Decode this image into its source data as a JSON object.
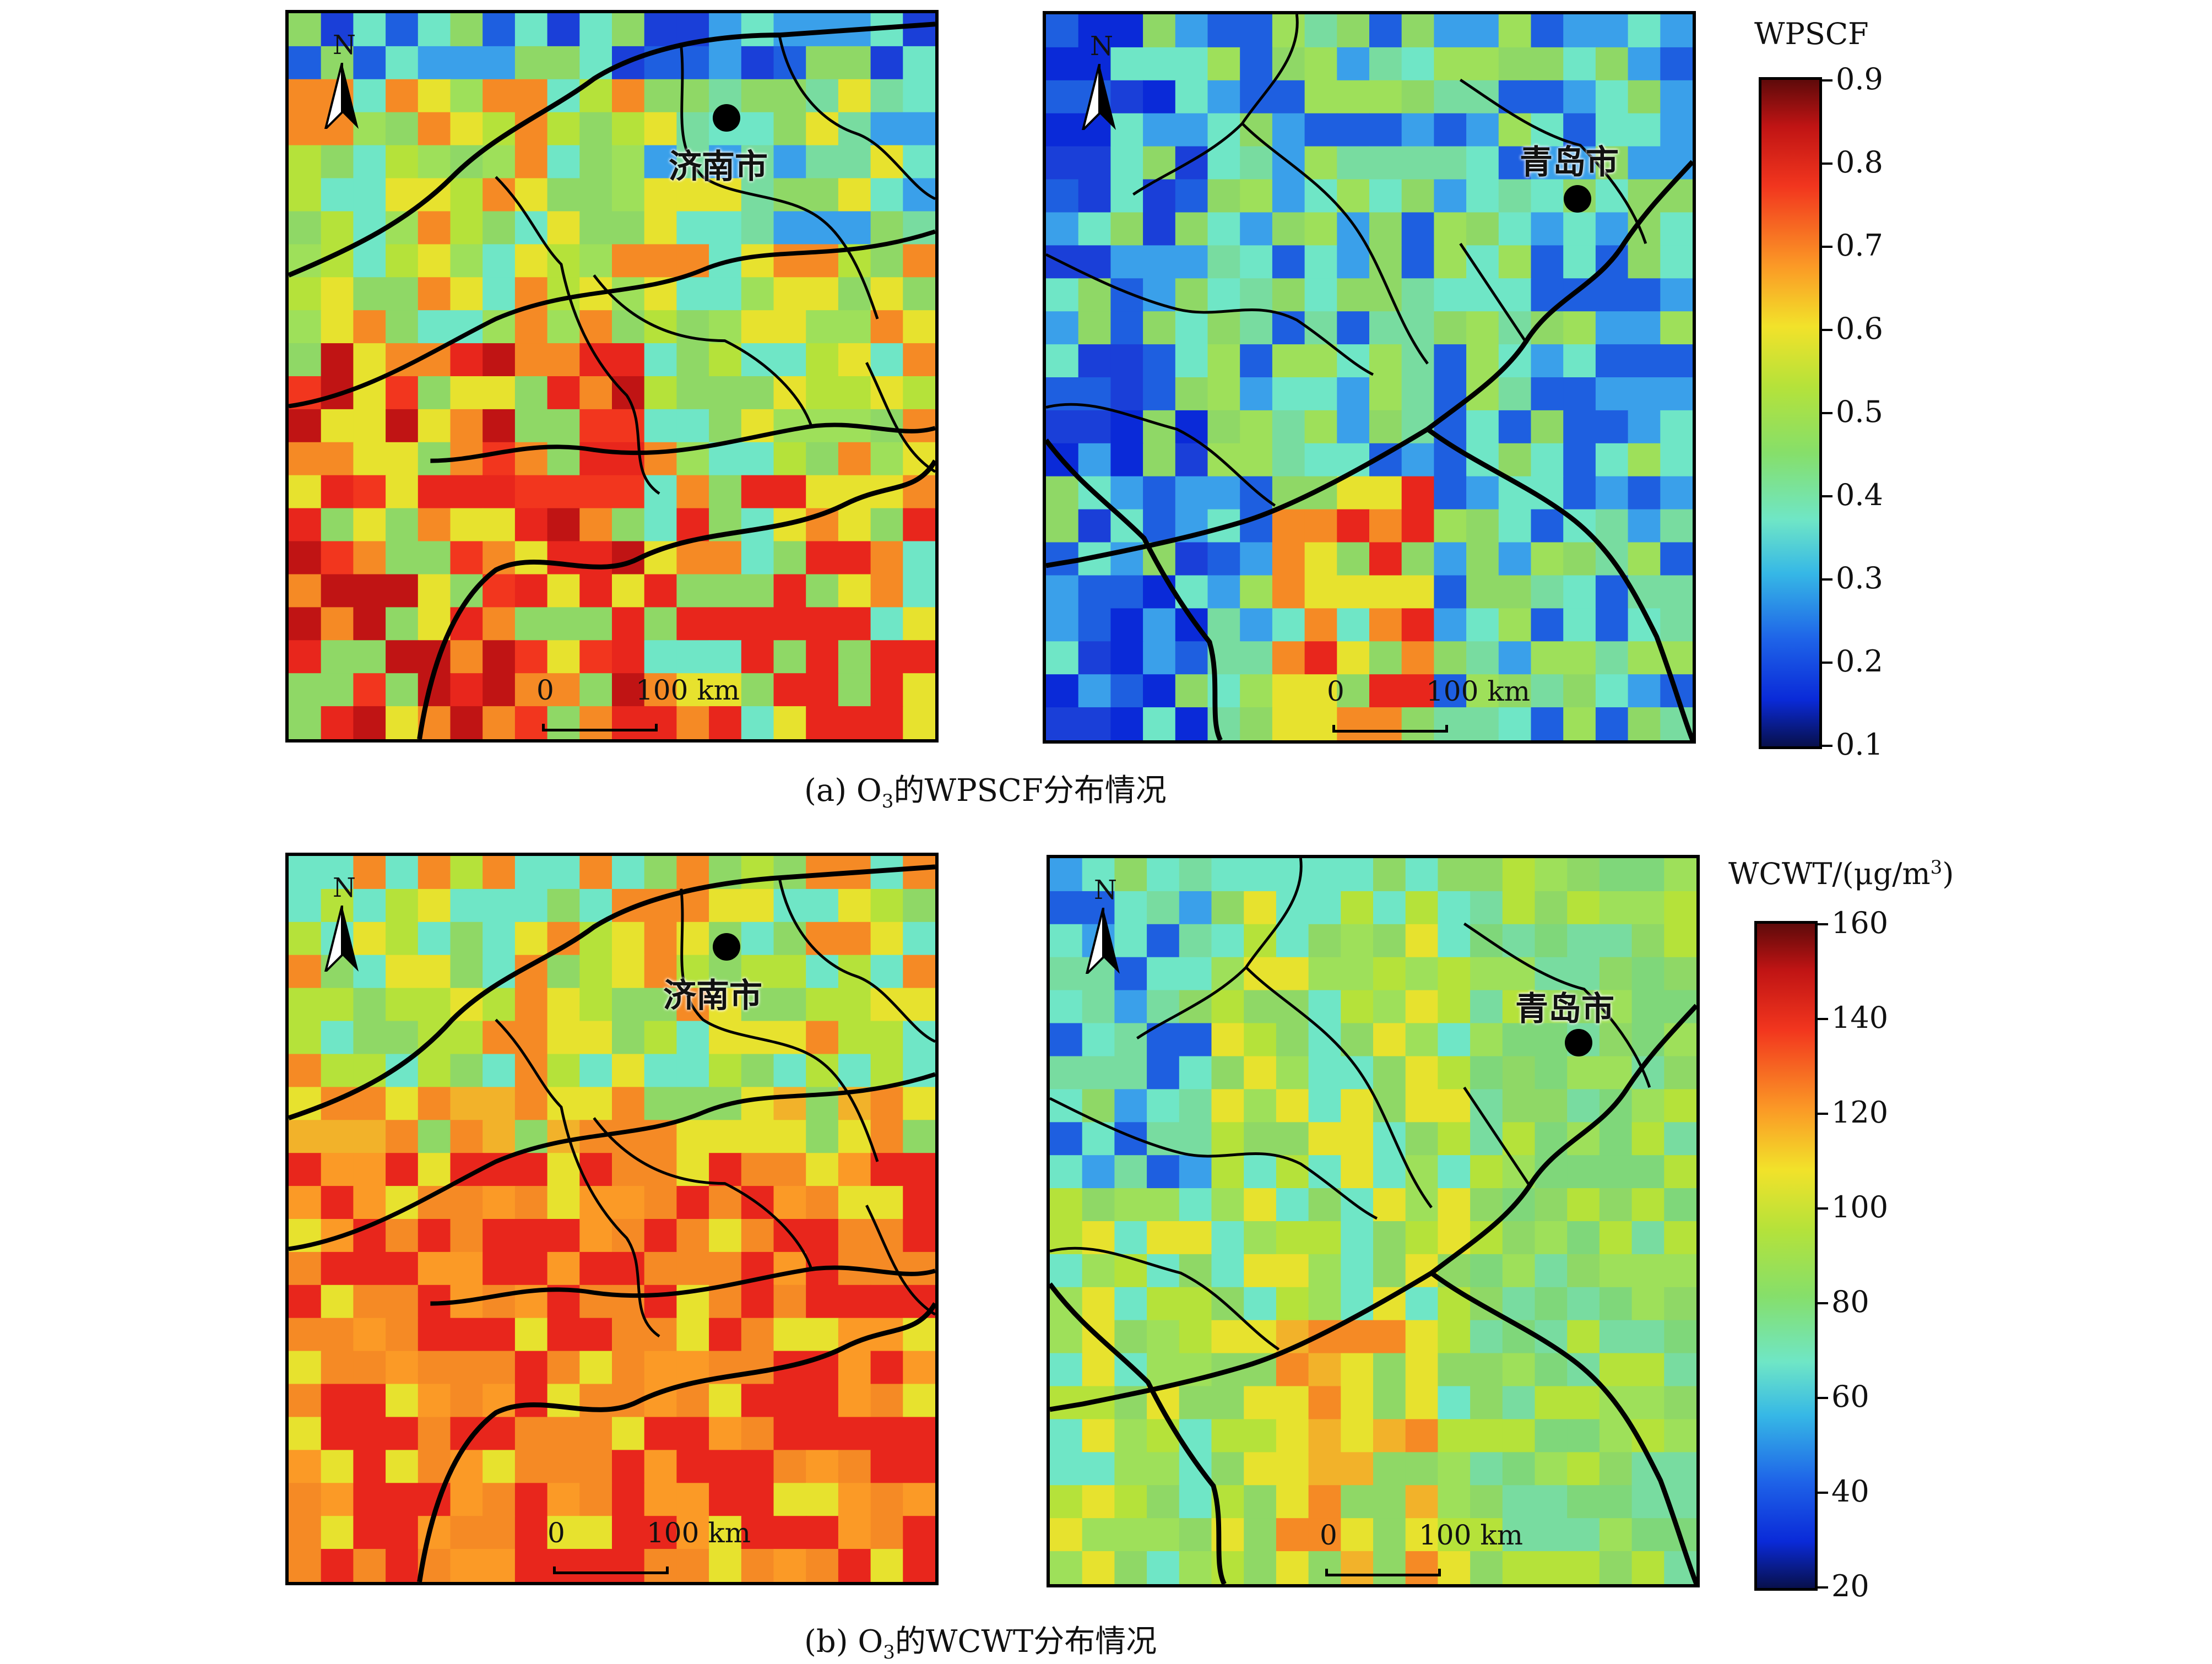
{
  "panels": {
    "a_left": {
      "city": "济南市"
    },
    "a_right": {
      "city": "青岛市"
    },
    "b_left": {
      "city": "济南市"
    },
    "b_right": {
      "city": "青岛市"
    }
  },
  "north_label": "N",
  "scale_bar": {
    "start": "0",
    "end": "100 km"
  },
  "captions": {
    "a_prefix": "(a) O",
    "a_sub": "3",
    "a_suffix": "的WPSCF分布情况",
    "b_prefix": "(b) O",
    "b_sub": "3",
    "b_suffix": "的WCWT分布情况"
  },
  "colorbars": {
    "wpscf": {
      "title": "WPSCF",
      "ticks": [
        "0.9",
        "0.8",
        "0.7",
        "0.6",
        "0.5",
        "0.4",
        "0.3",
        "0.2",
        "0.1"
      ],
      "min": 0.1,
      "max": 0.9
    },
    "wcwt": {
      "title_prefix": "WCWT/(μg/m",
      "title_sup": "3",
      "title_suffix": ")",
      "ticks": [
        "160",
        "140",
        "120",
        "100",
        "80",
        "60",
        "40",
        "20"
      ],
      "min": 20,
      "max": 160
    }
  },
  "colors": {
    "dark_red": "#5e0a0a",
    "red": "#e8261c",
    "orange": "#f58a25",
    "yellow": "#e7e22e",
    "green": "#8fd866",
    "cyan": "#6fe6c6",
    "blue": "#1e5fe0",
    "navy": "#08104c"
  }
}
